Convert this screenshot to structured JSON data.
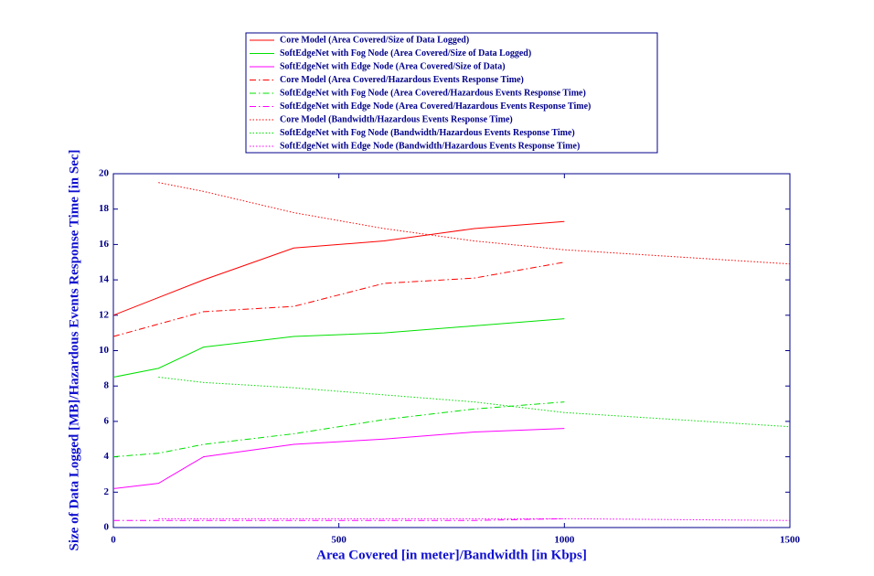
{
  "chart_data": {
    "type": "line",
    "xlabel": "Area Covered [in meter]/Bandwidth [in Kbps]",
    "ylabel": "Size of Data Logged [MB]/Hazardous Events Response Time [in Sec]",
    "x": [
      0,
      100,
      200,
      400,
      600,
      800,
      1000,
      1500
    ],
    "series": [
      {
        "name": "Core Model (Area Covered/Size of Data Logged)",
        "color": "#ff0000",
        "dash": "solid",
        "values": [
          12,
          13,
          14,
          15.8,
          16.2,
          16.9,
          17.3,
          null
        ]
      },
      {
        "name": "SoftEdgeNet with Fog Node (Area Covered/Size of Data Logged)",
        "color": "#00e000",
        "dash": "solid",
        "values": [
          8.5,
          9.0,
          10.2,
          10.8,
          11.0,
          11.4,
          11.8,
          null
        ]
      },
      {
        "name": "SoftEdgeNet with Edge Node (Area Covered/Size of Data)",
        "color": "#ff00ff",
        "dash": "solid",
        "values": [
          2.2,
          2.5,
          4.0,
          4.7,
          5.0,
          5.4,
          5.6,
          null
        ]
      },
      {
        "name": "Core Model (Area Covered/Hazardous Events Response Time)",
        "color": "#ff0000",
        "dash": "dashdot",
        "values": [
          10.8,
          11.5,
          12.2,
          12.5,
          13.8,
          14.1,
          15.0,
          null
        ]
      },
      {
        "name": "SoftEdgeNet with Fog Node (Area Covered/Hazardous Events Response Time)",
        "color": "#00e000",
        "dash": "dashdot",
        "values": [
          4.0,
          4.2,
          4.7,
          5.3,
          6.1,
          6.7,
          7.1,
          null
        ]
      },
      {
        "name": "SoftEdgeNet with Edge Node (Area Covered/Hazardous Events Response Time)",
        "color": "#ff00ff",
        "dash": "dashdot",
        "values": [
          0.4,
          0.4,
          0.4,
          0.4,
          0.4,
          0.4,
          0.5,
          null
        ]
      },
      {
        "name": "Core Model (Bandwidth/Hazardous Events Response Time)",
        "color": "#ff0000",
        "dash": "dotted",
        "values": [
          null,
          19.5,
          19.0,
          17.8,
          16.9,
          16.2,
          15.7,
          14.9
        ]
      },
      {
        "name": "SoftEdgeNet with Fog Node (Bandwidth/Hazardous Events Response Time)",
        "color": "#00e000",
        "dash": "dotted",
        "values": [
          null,
          8.5,
          8.2,
          7.9,
          7.5,
          7.1,
          6.5,
          5.7
        ]
      },
      {
        "name": "SoftEdgeNet with Edge Node (Bandwidth/Hazardous Events Response Time)",
        "color": "#ff00ff",
        "dash": "dotted",
        "values": [
          null,
          0.5,
          0.5,
          0.5,
          0.5,
          0.5,
          0.5,
          0.4
        ]
      }
    ],
    "xlim": [
      0,
      1500
    ],
    "xticks": [
      0,
      500,
      1000,
      1500
    ],
    "ylim": [
      0,
      20
    ],
    "yticks": [
      0,
      2,
      4,
      6,
      8,
      10,
      12,
      14,
      16,
      18,
      20
    ],
    "legend": "top"
  }
}
